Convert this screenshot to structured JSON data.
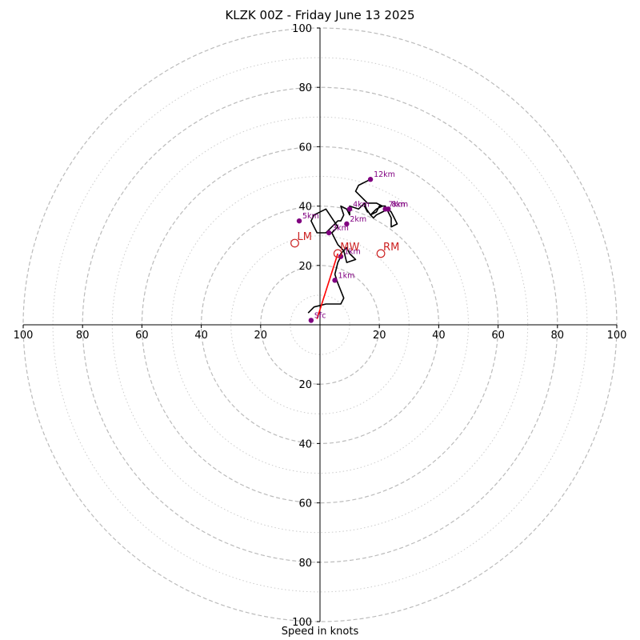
{
  "chart_data": {
    "type": "hodograph",
    "title": "KLZK 00Z - Friday June 13 2025",
    "xlabel": "Speed in knots",
    "units": "knots",
    "max_speed": 100,
    "ring_major": [
      20,
      40,
      60,
      80,
      100
    ],
    "ring_minor": [
      10,
      30,
      50,
      70,
      90
    ],
    "axis_tick_labels": [
      "20",
      "40",
      "60",
      "80",
      "100"
    ],
    "grid": true,
    "colors": {
      "trace": "#000000",
      "height_markers": "#800080",
      "motion": "#cc2222",
      "shear_vector": "#ff0000",
      "grid": "#bbbbbb"
    },
    "trace": [
      [
        -4,
        4
      ],
      [
        -2,
        6
      ],
      [
        2,
        7
      ],
      [
        6,
        7
      ],
      [
        7,
        7
      ],
      [
        8,
        9
      ],
      [
        6,
        14
      ],
      [
        5,
        17
      ],
      [
        6,
        21
      ],
      [
        7,
        23
      ],
      [
        7,
        24
      ],
      [
        9,
        26
      ],
      [
        10,
        24
      ],
      [
        12,
        22
      ],
      [
        9,
        21
      ],
      [
        8,
        25
      ],
      [
        6,
        27
      ],
      [
        4,
        31
      ],
      [
        6,
        33
      ],
      [
        4,
        36
      ],
      [
        2,
        39
      ],
      [
        -2,
        37
      ],
      [
        -3,
        35
      ],
      [
        -2,
        33
      ],
      [
        -1,
        31
      ],
      [
        2,
        31
      ],
      [
        4,
        33
      ],
      [
        6,
        35
      ],
      [
        7,
        35
      ],
      [
        8,
        37
      ],
      [
        7,
        40
      ],
      [
        9,
        39
      ],
      [
        10,
        37
      ],
      [
        10,
        40
      ],
      [
        13,
        39
      ],
      [
        15,
        41
      ],
      [
        16,
        38
      ],
      [
        15,
        40
      ],
      [
        17,
        37
      ],
      [
        18,
        36
      ],
      [
        19,
        37
      ],
      [
        21,
        38
      ],
      [
        23,
        39
      ],
      [
        24,
        38
      ],
      [
        25,
        36
      ],
      [
        26,
        34
      ],
      [
        24,
        33
      ],
      [
        24,
        36
      ],
      [
        23,
        38
      ],
      [
        22,
        40
      ],
      [
        20,
        40
      ],
      [
        19,
        38
      ],
      [
        17,
        37
      ],
      [
        19,
        39
      ],
      [
        21,
        40
      ],
      [
        19,
        41
      ],
      [
        16,
        41
      ],
      [
        12,
        45
      ],
      [
        13,
        47
      ],
      [
        17,
        49
      ]
    ],
    "height_markers": [
      {
        "label": "Sfc",
        "x": -3,
        "y": 1.5
      },
      {
        "label": "1km",
        "x": 5,
        "y": 15
      },
      {
        "label": "1km",
        "x": 7,
        "y": 23
      },
      {
        "label": "2km",
        "x": 9,
        "y": 34
      },
      {
        "label": "3km",
        "x": 3,
        "y": 31
      },
      {
        "label": "4km",
        "x": 10,
        "y": 39
      },
      {
        "label": "5km",
        "x": -7,
        "y": 35
      },
      {
        "label": "7km",
        "x": 22,
        "y": 39
      },
      {
        "label": "8km",
        "x": 23,
        "y": 39
      },
      {
        "label": "12km",
        "x": 17,
        "y": 49
      }
    ],
    "storm_motions": [
      {
        "label": "LM",
        "x": -8.5,
        "y": 27.5
      },
      {
        "label": "MW",
        "x": 6,
        "y": 24
      },
      {
        "label": "RM",
        "x": 20.5,
        "y": 24
      }
    ],
    "shear_vector": {
      "from": [
        -1,
        2
      ],
      "to": [
        6,
        24
      ]
    }
  }
}
